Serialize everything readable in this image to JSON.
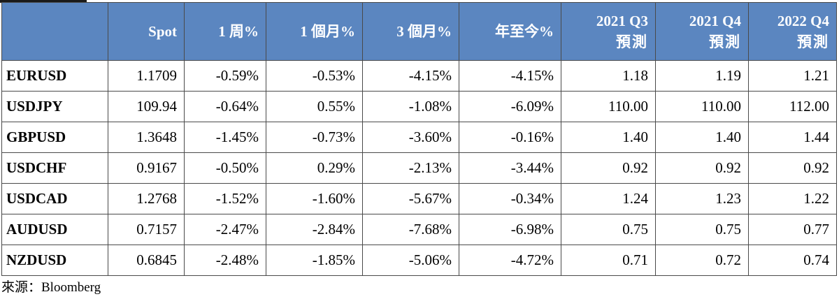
{
  "headers": {
    "pair": "",
    "spot": "Spot",
    "week": "1 周%",
    "month1": "1 個月%",
    "month3": "3 個月%",
    "ytd": "年至今%",
    "q3_2021_line1": "2021 Q3",
    "q3_2021_line2": "預測",
    "q4_2021_line1": "2021 Q4",
    "q4_2021_line2": "預測",
    "q4_2022_line1": "2022 Q4",
    "q4_2022_line2": "預測"
  },
  "rows": [
    {
      "pair": "EURUSD",
      "spot": "1.1709",
      "week": "-0.59%",
      "month1": "-0.53%",
      "month3": "-4.15%",
      "ytd": "-4.15%",
      "q3_2021": "1.18",
      "q4_2021": "1.19",
      "q4_2022": "1.21"
    },
    {
      "pair": "USDJPY",
      "spot": "109.94",
      "week": "-0.64%",
      "month1": "0.55%",
      "month3": "-1.08%",
      "ytd": "-6.09%",
      "q3_2021": "110.00",
      "q4_2021": "110.00",
      "q4_2022": "112.00"
    },
    {
      "pair": "GBPUSD",
      "spot": "1.3648",
      "week": "-1.45%",
      "month1": "-0.73%",
      "month3": "-3.60%",
      "ytd": "-0.16%",
      "q3_2021": "1.40",
      "q4_2021": "1.40",
      "q4_2022": "1.44"
    },
    {
      "pair": "USDCHF",
      "spot": "0.9167",
      "week": "-0.50%",
      "month1": "0.29%",
      "month3": "-2.13%",
      "ytd": "-3.44%",
      "q3_2021": "0.92",
      "q4_2021": "0.92",
      "q4_2022": "0.92"
    },
    {
      "pair": "USDCAD",
      "spot": "1.2768",
      "week": "-1.52%",
      "month1": "-1.60%",
      "month3": "-5.67%",
      "ytd": "-0.34%",
      "q3_2021": "1.24",
      "q4_2021": "1.23",
      "q4_2022": "1.22"
    },
    {
      "pair": "AUDUSD",
      "spot": "0.7157",
      "week": "-2.47%",
      "month1": "-2.84%",
      "month3": "-7.68%",
      "ytd": "-6.98%",
      "q3_2021": "0.75",
      "q4_2021": "0.75",
      "q4_2022": "0.77"
    },
    {
      "pair": "NZDUSD",
      "spot": "0.6845",
      "week": "-2.48%",
      "month1": "-1.85%",
      "month3": "-5.06%",
      "ytd": "-4.72%",
      "q3_2021": "0.71",
      "q4_2021": "0.72",
      "q4_2022": "0.74"
    }
  ],
  "source": "來源：Bloomberg"
}
